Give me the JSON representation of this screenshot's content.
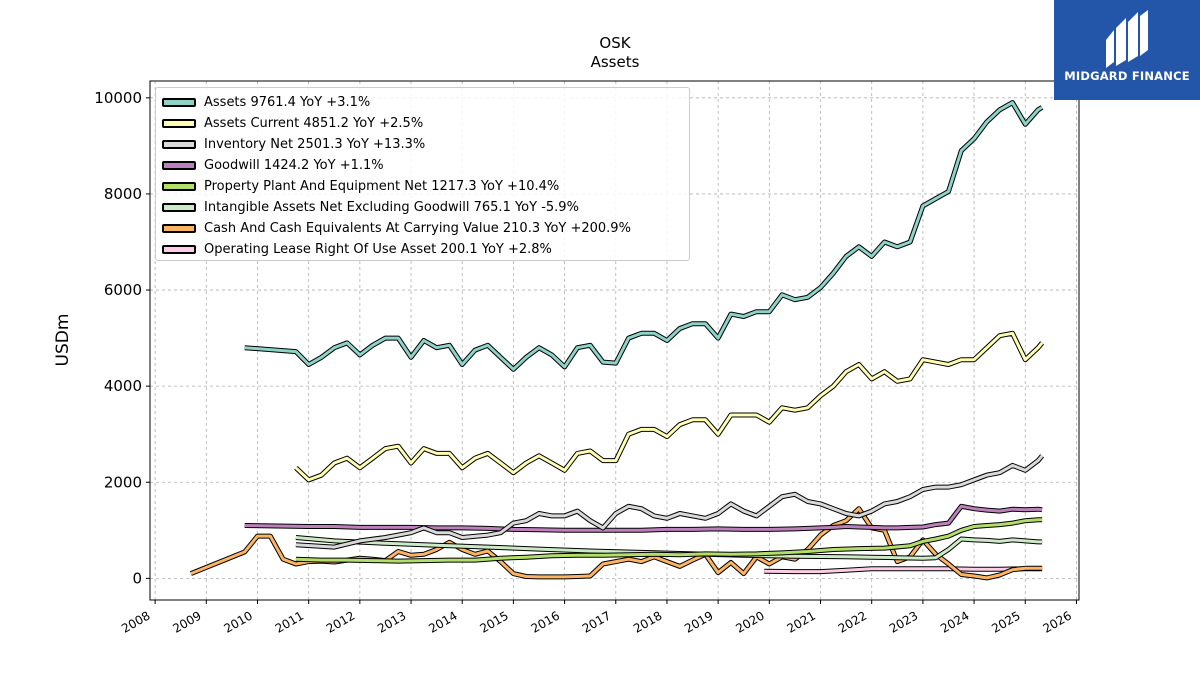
{
  "chart_data": {
    "type": "line",
    "title": "OSK",
    "subtitle": "Assets",
    "xlabel": "",
    "ylabel": "USDm",
    "xlim": [
      2007.9,
      2026.05
    ],
    "ylim": [
      -450,
      10350
    ],
    "x_ticks": [
      "2008",
      "2009",
      "2010",
      "2011",
      "2012",
      "2013",
      "2014",
      "2015",
      "2016",
      "2017",
      "2018",
      "2019",
      "2020",
      "2021",
      "2022",
      "2023",
      "2024",
      "2025",
      "2026"
    ],
    "y_ticks": [
      "0",
      "2000",
      "4000",
      "6000",
      "8000",
      "10000"
    ],
    "grid": true,
    "legend_position": "top-left",
    "series": [
      {
        "name": "Assets  9761.4 YoY +3.1%",
        "color": "#8dd3c7",
        "x": [
          2009.75,
          2010.75,
          2011.0,
          2011.25,
          2011.5,
          2011.75,
          2012.0,
          2012.25,
          2012.5,
          2012.75,
          2013.0,
          2013.25,
          2013.5,
          2013.75,
          2014.0,
          2014.25,
          2014.5,
          2014.75,
          2015.0,
          2015.25,
          2015.5,
          2015.75,
          2016.0,
          2016.25,
          2016.5,
          2016.75,
          2017.0,
          2017.25,
          2017.5,
          2017.75,
          2018.0,
          2018.25,
          2018.5,
          2018.75,
          2019.0,
          2019.25,
          2019.5,
          2019.75,
          2020.0,
          2020.25,
          2020.5,
          2020.75,
          2021.0,
          2021.25,
          2021.5,
          2021.75,
          2022.0,
          2022.25,
          2022.5,
          2022.75,
          2023.0,
          2023.25,
          2023.5,
          2023.75,
          2024.0,
          2024.25,
          2024.5,
          2024.75,
          2025.0,
          2025.25,
          2025.33
        ],
        "y": [
          4800,
          4720,
          4450,
          4600,
          4800,
          4900,
          4650,
          4850,
          5000,
          5000,
          4600,
          4950,
          4800,
          4850,
          4450,
          4750,
          4850,
          4600,
          4350,
          4600,
          4800,
          4650,
          4400,
          4800,
          4850,
          4500,
          4480,
          5000,
          5100,
          5100,
          4950,
          5200,
          5300,
          5300,
          5000,
          5500,
          5450,
          5550,
          5550,
          5900,
          5800,
          5850,
          6050,
          6350,
          6700,
          6900,
          6700,
          7000,
          6900,
          7000,
          7750,
          7900,
          8050,
          8900,
          9150,
          9500,
          9750,
          9900,
          9450,
          9750,
          9800
        ]
      },
      {
        "name": "Assets Current  4851.2 YoY +2.5%",
        "color": "#ffffb3",
        "x": [
          2010.75,
          2011.0,
          2011.25,
          2011.5,
          2011.75,
          2012.0,
          2012.25,
          2012.5,
          2012.75,
          2013.0,
          2013.25,
          2013.5,
          2013.75,
          2014.0,
          2014.25,
          2014.5,
          2014.75,
          2015.0,
          2015.25,
          2015.5,
          2015.75,
          2016.0,
          2016.25,
          2016.5,
          2016.75,
          2017.0,
          2017.25,
          2017.5,
          2017.75,
          2018.0,
          2018.25,
          2018.5,
          2018.75,
          2019.0,
          2019.25,
          2019.5,
          2019.75,
          2020.0,
          2020.25,
          2020.5,
          2020.75,
          2021.0,
          2021.25,
          2021.5,
          2021.75,
          2022.0,
          2022.25,
          2022.5,
          2022.75,
          2023.0,
          2023.25,
          2023.5,
          2023.75,
          2024.0,
          2024.25,
          2024.5,
          2024.75,
          2025.0,
          2025.25,
          2025.33
        ],
        "y": [
          2300,
          2050,
          2150,
          2400,
          2500,
          2300,
          2500,
          2700,
          2750,
          2400,
          2700,
          2600,
          2600,
          2300,
          2500,
          2600,
          2400,
          2200,
          2400,
          2550,
          2400,
          2250,
          2600,
          2650,
          2450,
          2450,
          3000,
          3100,
          3100,
          2950,
          3200,
          3300,
          3300,
          3000,
          3400,
          3400,
          3400,
          3250,
          3550,
          3500,
          3550,
          3800,
          4000,
          4300,
          4450,
          4150,
          4300,
          4100,
          4150,
          4550,
          4500,
          4450,
          4550,
          4550,
          4800,
          5050,
          5100,
          4550,
          4800,
          4900
        ]
      },
      {
        "name": "Inventory Net  2501.3 YoY +13.3%",
        "color": "#d9d9d9",
        "x": [
          2010.75,
          2011.5,
          2012.0,
          2012.5,
          2013.0,
          2013.25,
          2013.5,
          2013.75,
          2014.0,
          2014.5,
          2014.75,
          2015.0,
          2015.25,
          2015.5,
          2015.75,
          2016.0,
          2016.25,
          2016.5,
          2016.75,
          2017.0,
          2017.25,
          2017.5,
          2017.75,
          2018.0,
          2018.25,
          2018.5,
          2018.75,
          2019.0,
          2019.25,
          2019.5,
          2019.75,
          2020.0,
          2020.25,
          2020.5,
          2020.75,
          2021.0,
          2021.25,
          2021.5,
          2021.75,
          2022.0,
          2022.25,
          2022.5,
          2022.75,
          2023.0,
          2023.25,
          2023.5,
          2023.75,
          2024.0,
          2024.25,
          2024.5,
          2024.75,
          2025.0,
          2025.25,
          2025.33
        ],
        "y": [
          700,
          650,
          780,
          850,
          950,
          1050,
          950,
          950,
          850,
          900,
          950,
          1150,
          1200,
          1350,
          1300,
          1300,
          1400,
          1200,
          1050,
          1350,
          1500,
          1450,
          1300,
          1250,
          1350,
          1300,
          1250,
          1350,
          1550,
          1400,
          1300,
          1500,
          1700,
          1750,
          1600,
          1550,
          1450,
          1350,
          1300,
          1400,
          1550,
          1600,
          1700,
          1850,
          1900,
          1900,
          1950,
          2050,
          2150,
          2200,
          2350,
          2250,
          2450,
          2550
        ]
      },
      {
        "name": "Goodwill  1424.2 YoY +1.1%",
        "color": "#bc80bd",
        "x": [
          2009.75,
          2011.0,
          2011.5,
          2012.0,
          2012.5,
          2013.0,
          2013.5,
          2014.0,
          2014.5,
          2015.0,
          2015.5,
          2016.0,
          2016.5,
          2017.0,
          2017.5,
          2018.0,
          2018.5,
          2019.0,
          2019.5,
          2020.0,
          2020.5,
          2021.0,
          2021.25,
          2021.5,
          2021.75,
          2022.0,
          2022.25,
          2022.5,
          2022.75,
          2023.0,
          2023.25,
          2023.5,
          2023.75,
          2024.0,
          2024.25,
          2024.5,
          2024.75,
          2025.0,
          2025.25,
          2025.33
        ],
        "y": [
          1100,
          1080,
          1080,
          1060,
          1060,
          1060,
          1050,
          1050,
          1040,
          1020,
          1010,
          1000,
          1000,
          1000,
          1000,
          1020,
          1020,
          1030,
          1020,
          1020,
          1030,
          1050,
          1060,
          1080,
          1070,
          1060,
          1050,
          1050,
          1060,
          1070,
          1120,
          1150,
          1500,
          1450,
          1420,
          1400,
          1440,
          1430,
          1440,
          1430
        ]
      },
      {
        "name": "Property Plant And Equipment Net  1217.3 YoY +10.4%",
        "color": "#b3de69",
        "x": [
          2010.75,
          2011.25,
          2011.75,
          2012.25,
          2012.75,
          2013.25,
          2013.75,
          2014.25,
          2014.75,
          2015.25,
          2015.75,
          2016.25,
          2016.75,
          2017.25,
          2017.75,
          2018.25,
          2018.75,
          2019.25,
          2019.75,
          2020.25,
          2020.75,
          2021.25,
          2021.75,
          2022.25,
          2022.75,
          2023.0,
          2023.25,
          2023.5,
          2023.75,
          2024.0,
          2024.25,
          2024.5,
          2024.75,
          2025.0,
          2025.25,
          2025.33
        ],
        "y": [
          400,
          380,
          380,
          370,
          360,
          370,
          380,
          380,
          420,
          440,
          470,
          480,
          480,
          490,
          500,
          490,
          510,
          500,
          510,
          530,
          560,
          600,
          620,
          630,
          680,
          770,
          820,
          880,
          1000,
          1080,
          1100,
          1120,
          1150,
          1200,
          1220,
          1220
        ]
      },
      {
        "name": "Intangible Assets Net Excluding Goodwill  765.1 YoY -5.9%",
        "color": "#ccebc5",
        "x": [
          2010.75,
          2011.5,
          2012.5,
          2013.5,
          2014.5,
          2015.5,
          2016.5,
          2017.5,
          2018.5,
          2019.5,
          2020.5,
          2021.5,
          2022.0,
          2022.5,
          2023.0,
          2023.25,
          2023.5,
          2023.75,
          2024.0,
          2024.25,
          2024.5,
          2024.75,
          2025.0,
          2025.25,
          2025.33
        ],
        "y": [
          850,
          780,
          730,
          690,
          650,
          610,
          570,
          540,
          510,
          480,
          460,
          450,
          440,
          430,
          420,
          430,
          600,
          820,
          800,
          790,
          770,
          800,
          780,
          760,
          760
        ]
      },
      {
        "name": "Cash And Cash Equivalents At Carrying Value  210.3 YoY +200.9%",
        "color": "#fdb462",
        "x": [
          2008.7,
          2009.75,
          2010.0,
          2010.25,
          2010.5,
          2010.75,
          2011.0,
          2011.25,
          2011.5,
          2011.75,
          2012.0,
          2012.25,
          2012.5,
          2012.75,
          2013.0,
          2013.25,
          2013.5,
          2013.75,
          2014.0,
          2014.25,
          2014.5,
          2014.75,
          2015.0,
          2015.25,
          2015.5,
          2015.75,
          2016.0,
          2016.25,
          2016.5,
          2016.75,
          2017.0,
          2017.25,
          2017.5,
          2017.75,
          2018.0,
          2018.25,
          2018.5,
          2018.75,
          2019.0,
          2019.25,
          2019.5,
          2019.75,
          2020.0,
          2020.25,
          2020.5,
          2020.75,
          2021.0,
          2021.25,
          2021.5,
          2021.75,
          2022.0,
          2022.25,
          2022.5,
          2022.75,
          2023.0,
          2023.25,
          2023.5,
          2023.75,
          2024.0,
          2024.25,
          2024.5,
          2024.75,
          2025.0,
          2025.25,
          2025.33
        ],
        "y": [
          100,
          550,
          880,
          880,
          400,
          300,
          350,
          360,
          340,
          380,
          420,
          400,
          370,
          560,
          480,
          500,
          600,
          750,
          600,
          500,
          570,
          350,
          100,
          40,
          30,
          30,
          30,
          40,
          50,
          300,
          350,
          400,
          350,
          450,
          350,
          250,
          380,
          500,
          120,
          330,
          100,
          450,
          300,
          450,
          400,
          600,
          900,
          1100,
          1200,
          1450,
          1050,
          1000,
          350,
          450,
          800,
          500,
          300,
          80,
          50,
          10,
          70,
          180,
          210,
          210,
          210
        ]
      },
      {
        "name": "Operating Lease Right Of Use Asset  200.1 YoY +2.8%",
        "color": "#fccde5",
        "x": [
          2019.9,
          2020.5,
          2021.0,
          2021.5,
          2022.0,
          2022.5,
          2023.0,
          2023.5,
          2024.0,
          2024.5,
          2025.0,
          2025.33
        ],
        "y": [
          150,
          140,
          140,
          170,
          200,
          200,
          200,
          200,
          190,
          190,
          200,
          200
        ]
      }
    ]
  },
  "watermark": {
    "text": "MIDGARD FINANCE",
    "bg": "#2356a8"
  }
}
